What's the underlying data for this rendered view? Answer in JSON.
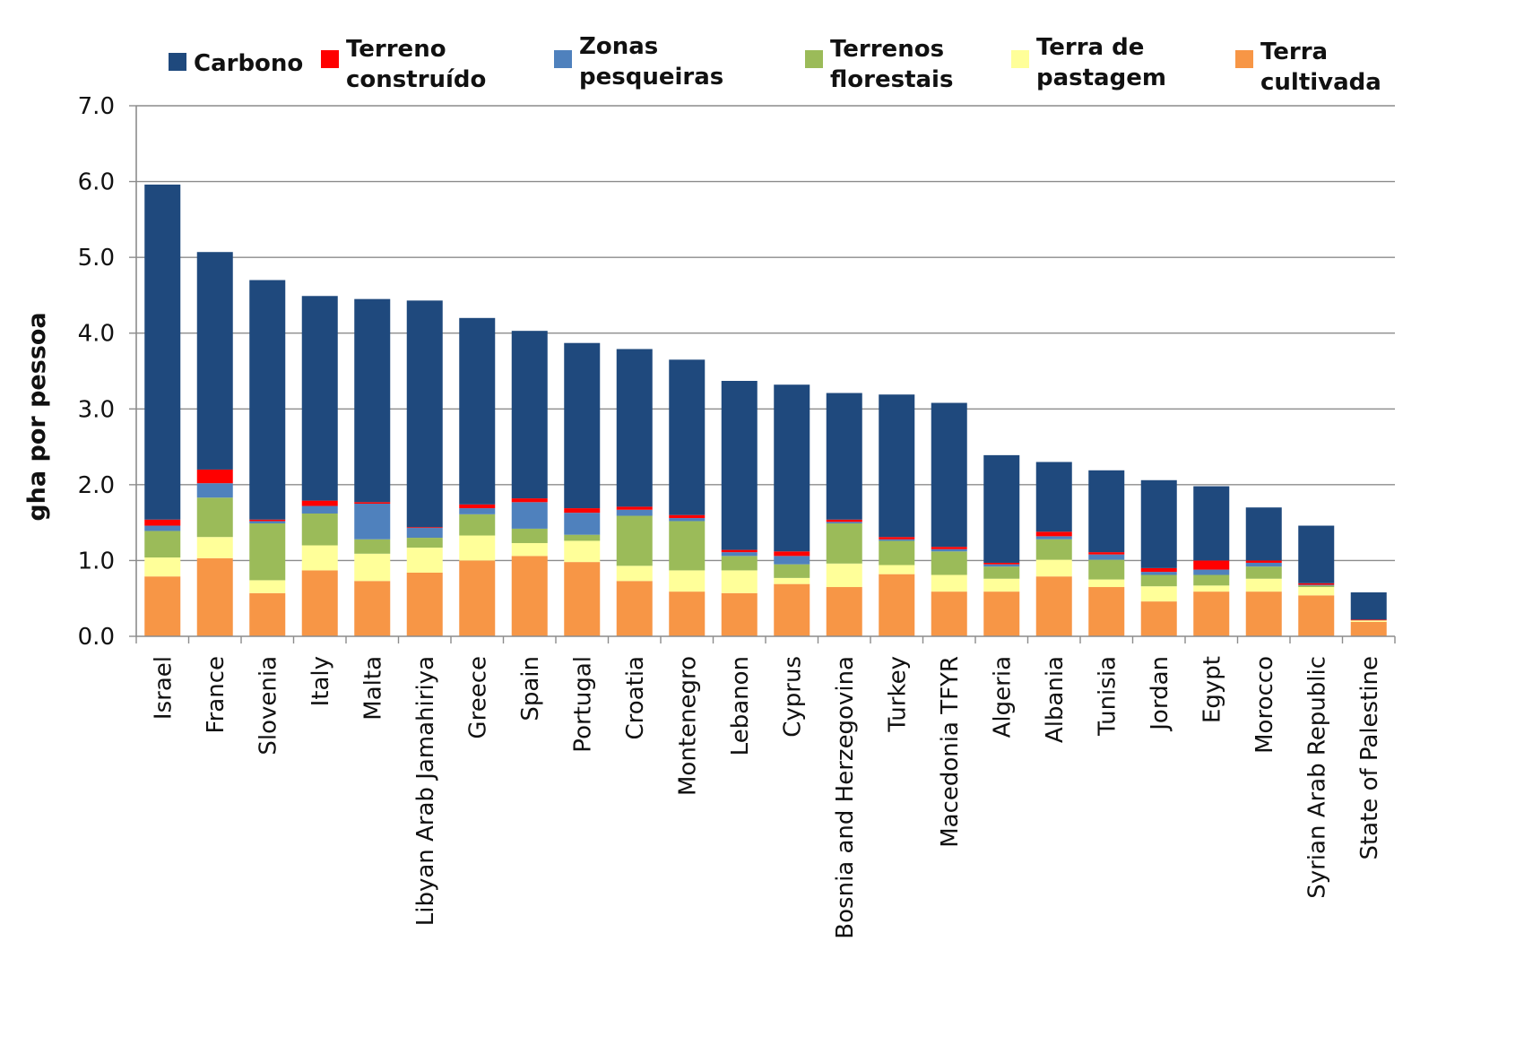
{
  "chart_data": {
    "type": "bar",
    "stacked": true,
    "title": "",
    "xlabel": "",
    "ylabel": "gha por pessoa",
    "ylim": [
      0,
      7
    ],
    "yticks": [
      "0.0",
      "1.0",
      "2.0",
      "3.0",
      "4.0",
      "5.0",
      "6.0",
      "7.0"
    ],
    "grid": true,
    "legend_position": "top",
    "categories": [
      "Israel",
      "France",
      "Slovenia",
      "Italy",
      "Malta",
      "Libyan Arab Jamahiriya",
      "Greece",
      "Spain",
      "Portugal",
      "Croatia",
      "Montenegro",
      "Lebanon",
      "Cyprus",
      "Bosnia and Herzegovina",
      "Turkey",
      "Macedonia TFYR",
      "Algeria",
      "Albania",
      "Tunisia",
      "Jordan",
      "Egypt",
      "Morocco",
      "Syrian Arab Republic",
      "State of Palestine"
    ],
    "legend": [
      {
        "lines": [
          "Terra",
          "cultivada"
        ],
        "series": 0
      },
      {
        "lines": [
          "Terra de",
          "pastagem"
        ],
        "series": 1
      },
      {
        "lines": [
          "Terrenos",
          "florestais"
        ],
        "series": 2
      },
      {
        "lines": [
          "Zonas",
          "pesqueiras"
        ],
        "series": 3
      },
      {
        "lines": [
          "Terreno",
          "construído"
        ],
        "series": 4
      },
      {
        "lines": [
          "Carbono"
        ],
        "series": 5
      }
    ],
    "series": [
      {
        "name": "Terra cultivada",
        "color": "#f79646",
        "values": [
          0.79,
          1.03,
          0.57,
          0.87,
          0.73,
          0.84,
          1.0,
          1.06,
          0.98,
          0.73,
          0.59,
          0.57,
          0.69,
          0.65,
          0.82,
          0.59,
          0.59,
          0.79,
          0.65,
          0.46,
          0.59,
          0.59,
          0.54,
          0.19
        ]
      },
      {
        "name": "Terra de pastagem",
        "color": "#ffff99",
        "values": [
          0.25,
          0.28,
          0.17,
          0.33,
          0.36,
          0.33,
          0.33,
          0.17,
          0.28,
          0.2,
          0.28,
          0.3,
          0.08,
          0.31,
          0.12,
          0.22,
          0.17,
          0.22,
          0.1,
          0.2,
          0.08,
          0.17,
          0.11,
          0.02
        ]
      },
      {
        "name": "Terrenos florestais",
        "color": "#9bbb59",
        "values": [
          0.35,
          0.52,
          0.75,
          0.42,
          0.19,
          0.13,
          0.28,
          0.19,
          0.08,
          0.66,
          0.65,
          0.19,
          0.18,
          0.53,
          0.32,
          0.31,
          0.16,
          0.27,
          0.26,
          0.15,
          0.14,
          0.16,
          0.02,
          0.0
        ]
      },
      {
        "name": "Zonas pesqueiras",
        "color": "#4f81bd",
        "values": [
          0.07,
          0.19,
          0.03,
          0.1,
          0.47,
          0.13,
          0.08,
          0.35,
          0.29,
          0.08,
          0.04,
          0.05,
          0.11,
          0.02,
          0.02,
          0.03,
          0.03,
          0.04,
          0.07,
          0.04,
          0.07,
          0.05,
          0.01,
          0.0
        ]
      },
      {
        "name": "Terreno construído",
        "color": "#ff0000",
        "values": [
          0.08,
          0.18,
          0.02,
          0.07,
          0.02,
          0.01,
          0.05,
          0.05,
          0.06,
          0.04,
          0.04,
          0.03,
          0.06,
          0.03,
          0.03,
          0.03,
          0.02,
          0.06,
          0.03,
          0.05,
          0.12,
          0.03,
          0.02,
          0.01
        ]
      },
      {
        "name": "Carbono",
        "color": "#1f497d",
        "values": [
          4.42,
          2.87,
          3.16,
          2.7,
          2.68,
          2.99,
          2.46,
          2.21,
          2.18,
          2.08,
          2.05,
          2.23,
          2.2,
          1.67,
          1.88,
          1.9,
          1.42,
          0.92,
          1.08,
          1.16,
          0.98,
          0.7,
          0.76,
          0.36
        ]
      }
    ]
  }
}
